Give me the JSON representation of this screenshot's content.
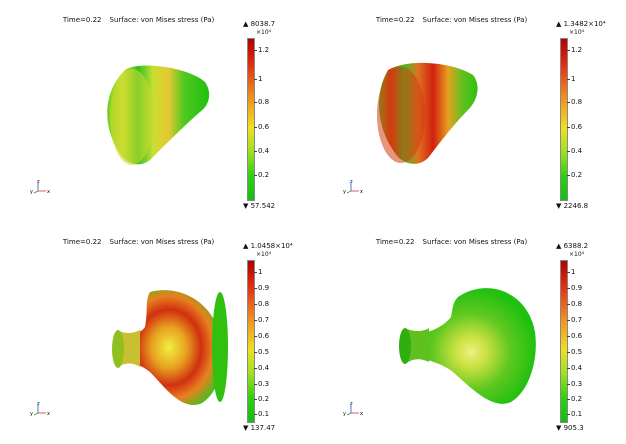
{
  "panels": [
    {
      "title_time": "Time=0.22",
      "title_surface": "Surface: von Mises stress (Pa)",
      "max": "▲ 8038.7",
      "exp": "×10⁴",
      "min": "▼ 57.542",
      "ticks": [
        "1.2",
        "1",
        "0.8",
        "0.6",
        "0.4",
        "0.2"
      ],
      "shape": "cone-a"
    },
    {
      "title_time": "Time=0.22",
      "title_surface": "Surface: von Mises stress (Pa)",
      "max": "▲ 1.3482×10⁴",
      "exp": "×10⁴",
      "min": "▼ 2246.8",
      "ticks": [
        "1.2",
        "1",
        "0.8",
        "0.6",
        "0.4",
        "0.2"
      ],
      "shape": "cone-b"
    },
    {
      "title_time": "Time=0.22",
      "title_surface": "Surface: von Mises stress (Pa)",
      "max": "▲ 1.0458×10⁴",
      "exp": "×10⁴",
      "min": "▼ 137.47",
      "ticks": [
        "1",
        "0.9",
        "0.8",
        "0.7",
        "0.6",
        "0.5",
        "0.4",
        "0.3",
        "0.2",
        "0.1"
      ],
      "shape": "bell-a"
    },
    {
      "title_time": "Time=0.22",
      "title_surface": "Surface: von Mises stress (Pa)",
      "max": "▲ 6388.2",
      "exp": "×10⁴",
      "min": "▼ 905.3",
      "ticks": [
        "1",
        "0.9",
        "0.8",
        "0.7",
        "0.6",
        "0.5",
        "0.4",
        "0.3",
        "0.2",
        "0.1"
      ],
      "shape": "bell-b"
    }
  ],
  "axes": {
    "x": "x",
    "y": "y",
    "z": "z"
  },
  "colors": {
    "high": "#b10000",
    "mid": "#f0e020",
    "low": "#10c010"
  }
}
